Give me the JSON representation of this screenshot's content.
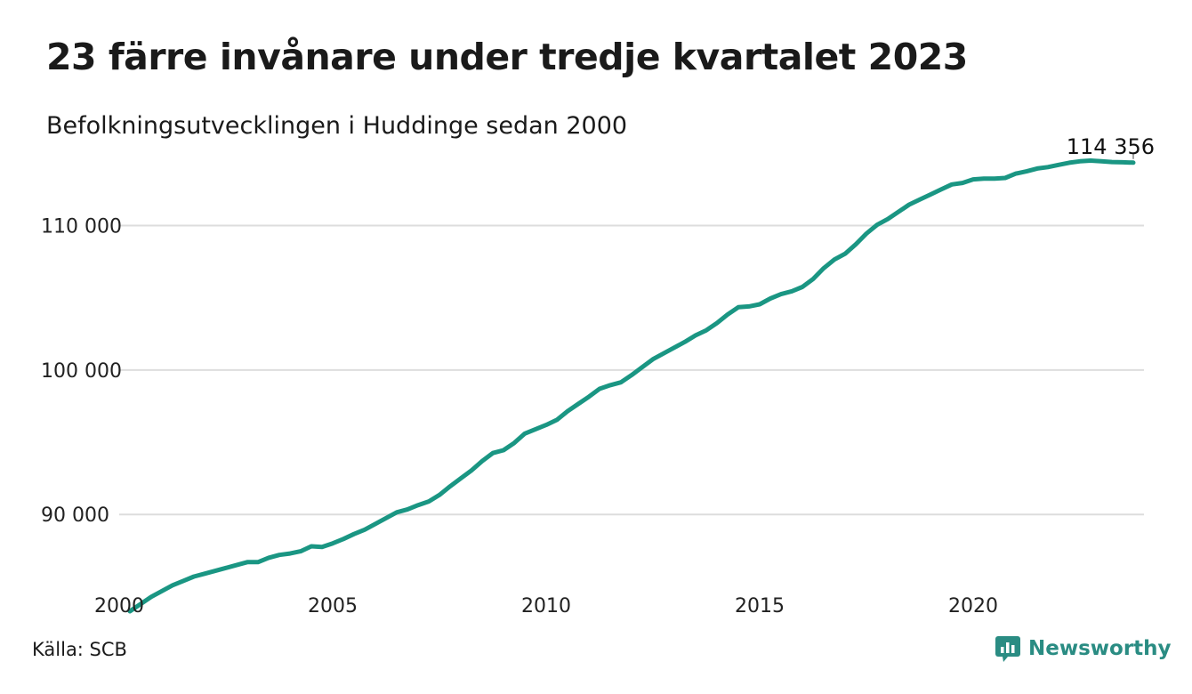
{
  "title": "23 färre invånare under tredje kvartalet 2023",
  "subtitle": "Befolkningsutvecklingen i Huddinge sedan 2000",
  "source": "Källa: SCB",
  "brand": {
    "name": "Newsworthy",
    "icon": "newsworthy-logo-icon",
    "color": "#2a8c83"
  },
  "colors": {
    "line": "#1a9683",
    "grid": "#dddddd"
  },
  "chart_data": {
    "type": "line",
    "title": "23 färre invånare under tredje kvartalet 2023",
    "subtitle": "Befolkningsutvecklingen i Huddinge sedan 2000",
    "xlabel": "",
    "ylabel": "",
    "xlim": [
      2000,
      2024
    ],
    "ylim": [
      82500,
      116500
    ],
    "x_ticks": [
      2000,
      2005,
      2010,
      2015,
      2020
    ],
    "x_tick_labels": [
      "2000",
      "2005",
      "2010",
      "2015",
      "2020"
    ],
    "y_ticks": [
      90000,
      100000,
      110000
    ],
    "y_tick_labels": [
      "90 000",
      "100 000",
      "110 000"
    ],
    "grid": "horizontal",
    "last_value_label": "114 356",
    "series": [
      {
        "x": [
          2000.25,
          2000.5,
          2000.75,
          2001.0,
          2001.25,
          2001.5,
          2001.75,
          2002.0,
          2002.25,
          2002.5,
          2002.75,
          2003.0,
          2003.25,
          2003.5,
          2003.75,
          2004.0,
          2004.25,
          2004.5,
          2004.75,
          2005.0,
          2005.25,
          2005.5,
          2005.75,
          2006.0,
          2006.25,
          2006.5,
          2006.75,
          2007.0,
          2007.25,
          2007.5,
          2007.75,
          2008.0,
          2008.25,
          2008.5,
          2008.75,
          2009.0,
          2009.25,
          2009.5,
          2009.75,
          2010.0,
          2010.25,
          2010.5,
          2010.75,
          2011.0,
          2011.25,
          2011.5,
          2011.75,
          2012.0,
          2012.25,
          2012.5,
          2012.75,
          2013.0,
          2013.25,
          2013.5,
          2013.75,
          2014.0,
          2014.25,
          2014.5,
          2014.75,
          2015.0,
          2015.25,
          2015.5,
          2015.75,
          2016.0,
          2016.25,
          2016.5,
          2016.75,
          2017.0,
          2017.25,
          2017.5,
          2017.75,
          2018.0,
          2018.25,
          2018.5,
          2018.75,
          2019.0,
          2019.25,
          2019.5,
          2019.75,
          2020.0,
          2020.25,
          2020.5,
          2020.75,
          2021.0,
          2021.25,
          2021.5,
          2021.75,
          2022.0,
          2022.25,
          2022.5,
          2022.75,
          2023.0,
          2023.25,
          2023.5,
          2023.75
        ],
        "values": [
          83300,
          83800,
          84300,
          84700,
          85100,
          85400,
          85700,
          85900,
          86100,
          86300,
          86500,
          86700,
          86700,
          87000,
          87200,
          87300,
          87450,
          87800,
          87750,
          88000,
          88300,
          88650,
          88950,
          89350,
          89750,
          90150,
          90350,
          90650,
          90900,
          91350,
          91950,
          92500,
          93050,
          93700,
          94250,
          94450,
          94950,
          95600,
          95900,
          96200,
          96550,
          97150,
          97650,
          98150,
          98700,
          98950,
          99150,
          99650,
          100200,
          100750,
          101150,
          101550,
          101950,
          102400,
          102750,
          103250,
          103850,
          104350,
          104400,
          104550,
          104950,
          105250,
          105450,
          105750,
          106300,
          107050,
          107650,
          108050,
          108700,
          109450,
          110050,
          110450,
          110950,
          111450,
          111800,
          112150,
          112500,
          112850,
          112950,
          113200,
          113250,
          113250,
          113300,
          113600,
          113750,
          113950,
          114050,
          114200,
          114350,
          114450,
          114500,
          114450,
          114400,
          114380,
          114356
        ]
      }
    ]
  }
}
